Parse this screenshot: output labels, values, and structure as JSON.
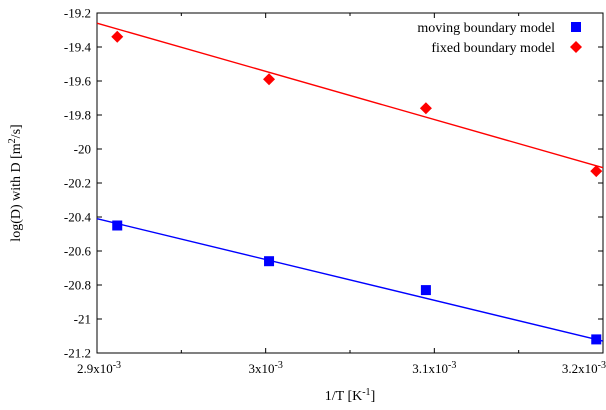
{
  "chart_data": {
    "type": "scatter",
    "xlabel": "1/T [K⁻¹]",
    "ylabel": "log(D) with D [m²/s]",
    "xlim": [
      0.0029,
      0.0032
    ],
    "ylim": [
      -21.2,
      -19.2
    ],
    "x_ticks": [
      {
        "value": 0.0029,
        "label": "2.9x10⁻³"
      },
      {
        "value": 0.003,
        "label": "3x10⁻³"
      },
      {
        "value": 0.0031,
        "label": "3.1x10⁻³"
      },
      {
        "value": 0.0032,
        "label": "3.2x10⁻³"
      }
    ],
    "x_minor_ticks": [
      0.00295,
      0.00305,
      0.00315
    ],
    "y_ticks": [
      {
        "value": -19.2,
        "label": "-19.2"
      },
      {
        "value": -19.4,
        "label": "-19.4"
      },
      {
        "value": -19.6,
        "label": "-19.6"
      },
      {
        "value": -19.8,
        "label": "-19.8"
      },
      {
        "value": -20.0,
        "label": "-20"
      },
      {
        "value": -20.2,
        "label": "-20.2"
      },
      {
        "value": -20.4,
        "label": "-20.4"
      },
      {
        "value": -20.6,
        "label": "-20.6"
      },
      {
        "value": -20.8,
        "label": "-20.8"
      },
      {
        "value": -21.0,
        "label": "-21"
      },
      {
        "value": -21.2,
        "label": "-21.2"
      }
    ],
    "legend_position": "top-right",
    "series": [
      {
        "name": "moving boundary model",
        "color": "#0000ff",
        "marker": "square",
        "x": [
          0.002912,
          0.003002,
          0.003095,
          0.003196
        ],
        "y": [
          -20.45,
          -20.66,
          -20.83,
          -21.12
        ],
        "fit": {
          "x": [
            0.0029,
            0.0032
          ],
          "y": [
            -20.41,
            -21.13
          ]
        }
      },
      {
        "name": "fixed boundary model",
        "color": "#ff0000",
        "marker": "diamond",
        "x": [
          0.002912,
          0.003002,
          0.003095,
          0.003196
        ],
        "y": [
          -19.34,
          -19.59,
          -19.76,
          -20.13
        ],
        "fit": {
          "x": [
            0.0029,
            0.0032
          ],
          "y": [
            -19.26,
            -20.11
          ]
        }
      }
    ]
  }
}
